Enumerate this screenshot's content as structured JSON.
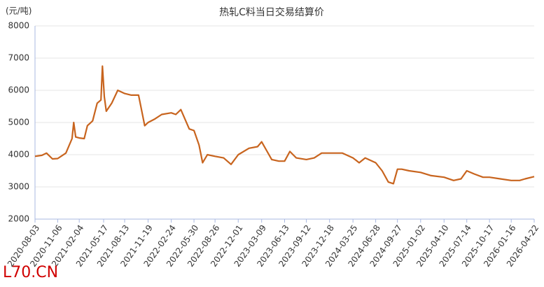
{
  "chart_data": {
    "type": "line",
    "title": "热轧C料当日交易结算价",
    "y_label": "(元/吨)",
    "watermark": "L70.CN",
    "x": [
      "2020-08-03",
      "2020-09-01",
      "2020-09-20",
      "2020-10-15",
      "2020-11-06",
      "2020-12-10",
      "2021-01-05",
      "2021-01-12",
      "2021-01-20",
      "2021-02-04",
      "2021-02-25",
      "2021-03-10",
      "2021-04-01",
      "2021-04-20",
      "2021-05-06",
      "2021-05-12",
      "2021-05-20",
      "2021-05-28",
      "2021-06-20",
      "2021-07-15",
      "2021-08-13",
      "2021-09-10",
      "2021-10-10",
      "2021-10-25",
      "2021-11-05",
      "2021-11-19",
      "2021-12-15",
      "2022-01-15",
      "2022-02-24",
      "2022-03-15",
      "2022-04-05",
      "2022-05-10",
      "2022-05-30",
      "2022-06-20",
      "2022-07-05",
      "2022-07-25",
      "2022-08-26",
      "2022-10-01",
      "2022-11-01",
      "2022-12-01",
      "2023-01-15",
      "2023-02-20",
      "2023-03-09",
      "2023-04-20",
      "2023-05-20",
      "2023-06-13",
      "2023-07-05",
      "2023-08-01",
      "2023-09-12",
      "2023-10-15",
      "2023-11-15",
      "2023-12-18",
      "2024-02-10",
      "2024-03-25",
      "2024-04-20",
      "2024-05-15",
      "2024-06-28",
      "2024-07-25",
      "2024-08-20",
      "2024-09-10",
      "2024-09-27",
      "2024-10-15",
      "2024-11-15",
      "2025-01-02",
      "2025-02-15",
      "2025-04-10",
      "2025-05-20",
      "2025-06-20",
      "2025-07-14",
      "2025-08-15",
      "2025-09-20",
      "2025-10-17",
      "2025-12-01",
      "2026-01-16",
      "2026-02-20",
      "2026-03-15",
      "2026-04-22"
    ],
    "series": [
      {
        "name": "热轧C料",
        "color": "#c8641e",
        "values": [
          3950,
          3980,
          4050,
          3870,
          3880,
          4050,
          4500,
          5000,
          4550,
          4520,
          4500,
          4900,
          5050,
          5600,
          5700,
          6750,
          5800,
          5350,
          5600,
          6000,
          5900,
          5850,
          5850,
          5300,
          4900,
          5000,
          5100,
          5250,
          5300,
          5250,
          5400,
          4800,
          4750,
          4300,
          3750,
          4000,
          3950,
          3900,
          3700,
          4000,
          4200,
          4250,
          4400,
          3850,
          3800,
          3800,
          4100,
          3900,
          3850,
          3900,
          4050,
          4050,
          4050,
          3900,
          3750,
          3900,
          3750,
          3500,
          3150,
          3100,
          3550,
          3550,
          3500,
          3450,
          3350,
          3300,
          3200,
          3250,
          3500,
          3400,
          3300,
          3300,
          3250,
          3200,
          3200,
          3250,
          3320
        ]
      }
    ],
    "xlim": [
      "2020-08-03",
      "2026-04-22"
    ],
    "xticks": [
      "2020-08-03",
      "2020-11-06",
      "2021-02-04",
      "2021-05-17",
      "2021-08-13",
      "2021-11-19",
      "2022-02-24",
      "2022-05-30",
      "2022-08-26",
      "2022-12-01",
      "2023-03-09",
      "2023-06-13",
      "2023-09-12",
      "2023-12-18",
      "2024-03-25",
      "2024-06-28",
      "2024-09-27",
      "2025-01-02",
      "2025-04-10",
      "2025-07-14",
      "2025-10-17",
      "2026-01-16",
      "2026-04-22"
    ],
    "ylim": [
      2000,
      8000
    ],
    "yticks": [
      2000,
      3000,
      4000,
      5000,
      6000,
      7000,
      8000
    ],
    "grid": true
  }
}
